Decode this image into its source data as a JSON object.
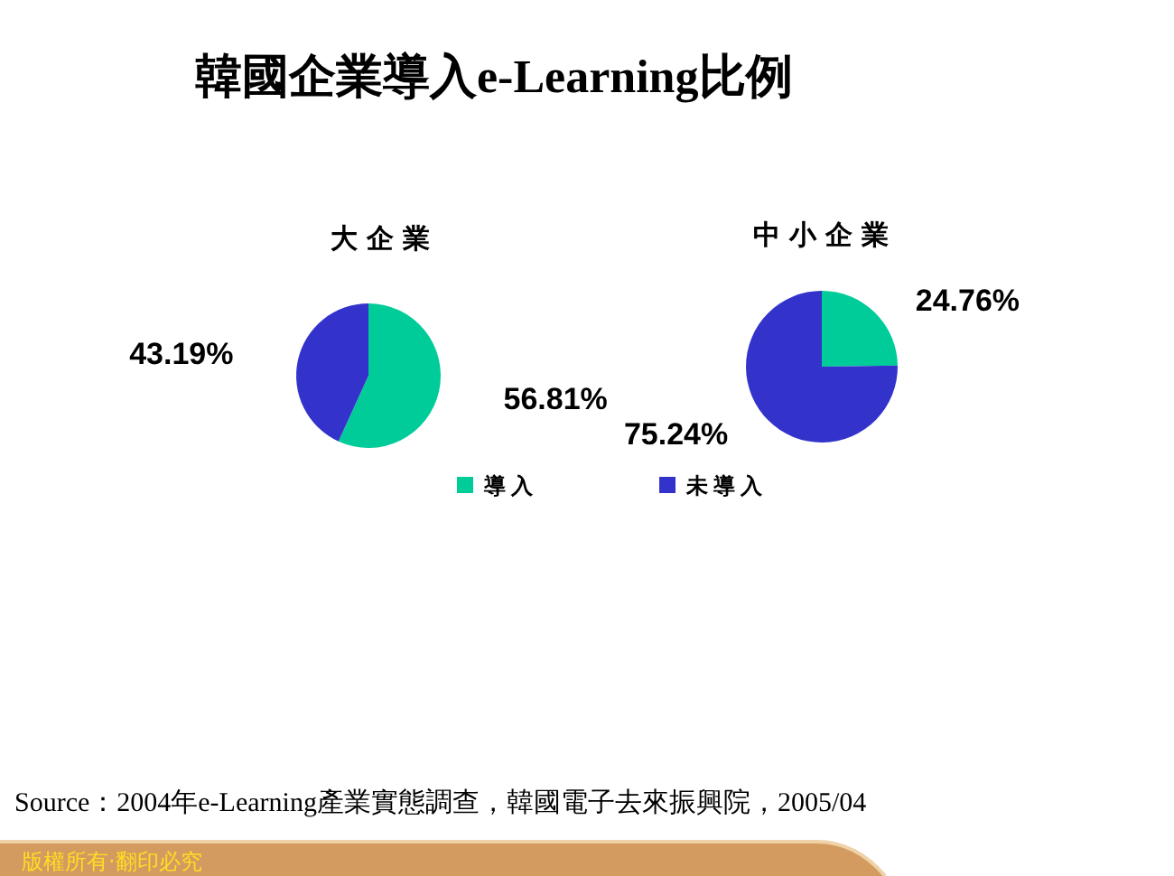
{
  "chart_data": [
    {
      "type": "pie",
      "title": "韓國企業導入e-Learning比例",
      "subtitle": "大企業",
      "categories": [
        "導入",
        "未導入"
      ],
      "values": [
        56.81,
        43.19
      ],
      "colors": [
        "#00cc99",
        "#3333cc"
      ],
      "value_labels": [
        "56.81%",
        "43.19%"
      ],
      "legend": "bottom"
    },
    {
      "type": "pie",
      "subtitle": "中小企業",
      "categories": [
        null,
        null
      ],
      "values": [
        24.76,
        75.24
      ],
      "colors": [
        "#00cc99",
        "#3333cc"
      ],
      "value_labels": [
        "24.76%",
        "75.24%"
      ],
      "annotations": [
        "Source：2004年e-Learning產業實態調查，韓國電子去來振興院，2005/04",
        "版權所有‧翻印必究"
      ]
    }
  ]
}
